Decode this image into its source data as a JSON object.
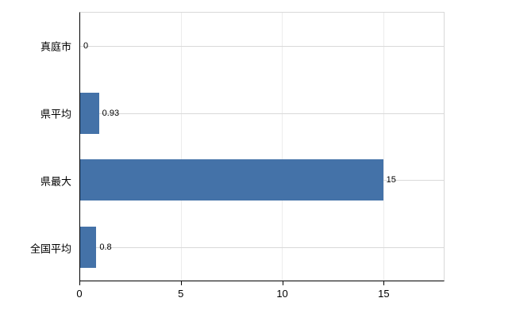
{
  "chart_data": {
    "type": "bar",
    "orientation": "horizontal",
    "title": "",
    "categories": [
      "真庭市",
      "県平均",
      "県最大",
      "全国平均"
    ],
    "values": [
      0,
      0.93,
      15,
      0.8
    ],
    "value_labels": [
      "0",
      "0.93",
      "15",
      "0.8"
    ],
    "xlim": [
      0,
      18
    ],
    "xticks": [
      0,
      5,
      10,
      15
    ],
    "xtick_labels": [
      "0",
      "5",
      "10",
      "15"
    ],
    "grid": "horizontal-per-category",
    "legend": "none",
    "colors": {
      "bar": "#4472a8",
      "axis": "#000000",
      "gridline": "#d9d9d9",
      "background": "#ffffff"
    }
  }
}
